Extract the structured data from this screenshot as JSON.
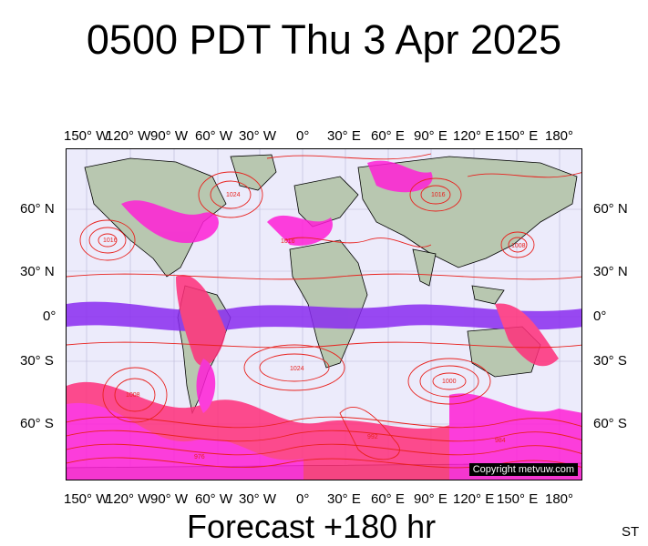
{
  "title": "0500 PDT Thu 3 Apr 2025",
  "forecast": "Forecast +180 hr",
  "corner_text": "ST",
  "copyright": "Copyright metvuw.com",
  "longitude_labels": [
    "150° W",
    "120° W",
    "90° W",
    "60° W",
    "30° W",
    "0°",
    "30° E",
    "60° E",
    "90° E",
    "120° E",
    "150° E",
    "180°"
  ],
  "latitude_labels": [
    "60° N",
    "30° N",
    "0°",
    "30° S",
    "60° S"
  ],
  "colors": {
    "isobar": "#e8221e",
    "precip_magenta": "#ff1fd6",
    "precip_pink": "#ff2f7a",
    "precip_purple": "#8a2cf0",
    "ocean": "#ecebfb",
    "land": "#b8c7b0"
  },
  "pressure_labels": [
    "1016",
    "1024",
    "1008",
    "1000",
    "992",
    "984",
    "976"
  ]
}
